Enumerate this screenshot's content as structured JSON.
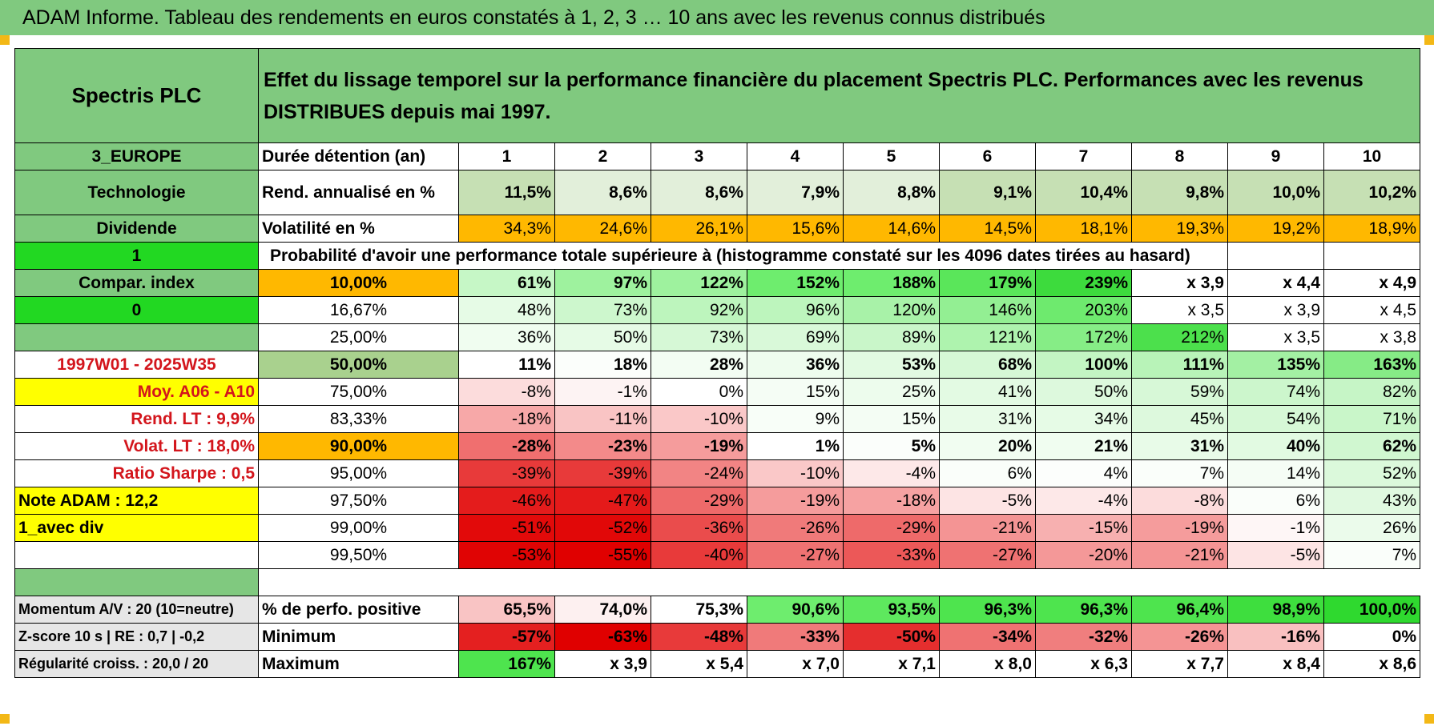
{
  "title": "ADAM Informe. Tableau des rendements en euros constatés à 1, 2, 3 … 10 ans avec les revenus connus distribués",
  "header": {
    "name": "Spectris PLC",
    "description": "Effet du lissage temporel sur la performance financière du placement Spectris PLC. Performances avec les revenus DISTRIBUES depuis mai 1997."
  },
  "years_row": {
    "side": "3_EUROPE",
    "label": "Durée détention (an)",
    "values": [
      "1",
      "2",
      "3",
      "4",
      "5",
      "6",
      "7",
      "8",
      "9",
      "10"
    ]
  },
  "rend_row": {
    "side": "Technologie",
    "label": "Rend. annualisé en %",
    "values": [
      "11,5%",
      "8,6%",
      "8,6%",
      "7,9%",
      "8,8%",
      "9,1%",
      "10,4%",
      "9,8%",
      "10,0%",
      "10,2%"
    ],
    "colors": [
      "#c6e0b4",
      "#e2efda",
      "#e2efda",
      "#e2efda",
      "#e2efda",
      "#c6e0b4",
      "#c6e0b4",
      "#c6e0b4",
      "#c6e0b4",
      "#c6e0b4"
    ]
  },
  "vol_row": {
    "side": "Dividende",
    "label": "Volatilité en %",
    "values": [
      "34,3%",
      "24,6%",
      "26,1%",
      "15,6%",
      "14,6%",
      "14,5%",
      "18,1%",
      "19,3%",
      "19,2%",
      "18,9%"
    ],
    "color": "#ffb800"
  },
  "prob_row": {
    "side": "1",
    "label": "Probabilité d'avoir une performance totale supérieure à (histogramme constaté sur les 4096 dates tirées au hasard)"
  },
  "prob_rows": [
    {
      "side": "Compar. index",
      "side_style": "hdr-green b",
      "pct": "10,00%",
      "pct_bg": "#ffb800",
      "bold": true,
      "values": [
        "61%",
        "97%",
        "122%",
        "152%",
        "188%",
        "179%",
        "239%",
        "x 3,9",
        "x 4,4",
        "x 4,9"
      ],
      "colors": [
        "#c6f7c6",
        "#9ef29e",
        "#9ef29e",
        "#6eed6e",
        "#6eed6e",
        "#5ae65a",
        "#3ddb3d",
        "#ffffff",
        "#ffffff",
        "#ffffff"
      ]
    },
    {
      "side": "0",
      "side_style": "lime b",
      "pct": "16,67%",
      "pct_bg": "#ffffff",
      "bold": false,
      "values": [
        "48%",
        "73%",
        "92%",
        "96%",
        "120%",
        "146%",
        "203%",
        "x 3,5",
        "x 3,9",
        "x 4,5"
      ],
      "colors": [
        "#e6fbe6",
        "#cdf7cd",
        "#bdf5bd",
        "#bdf5bd",
        "#a8f2a8",
        "#93ef93",
        "#6eea6e",
        "#ffffff",
        "#ffffff",
        "#ffffff"
      ]
    },
    {
      "side": "",
      "side_style": "hdr-green",
      "pct": "25,00%",
      "pct_bg": "#ffffff",
      "bold": false,
      "values": [
        "36%",
        "50%",
        "73%",
        "69%",
        "89%",
        "121%",
        "172%",
        "212%",
        "x 3,5",
        "x 3,8"
      ],
      "colors": [
        "#f0fdf0",
        "#e6fbe6",
        "#d6f8d6",
        "#d9f9d9",
        "#c9f6c9",
        "#aef3ae",
        "#86ed86",
        "#4ce04c",
        "#ffffff",
        "#ffffff"
      ]
    },
    {
      "side": "1997W01 - 2025W35",
      "side_style": "red b",
      "pct": "50,00%",
      "pct_bg": "#a9d18e",
      "bold": true,
      "big": true,
      "values": [
        "11%",
        "18%",
        "28%",
        "36%",
        "53%",
        "68%",
        "100%",
        "111%",
        "135%",
        "163%"
      ],
      "colors": [
        "#ffffff",
        "#fbfefb",
        "#f3fdf3",
        "#eefcee",
        "#e2fae2",
        "#d6f8d6",
        "#c3f5c3",
        "#b8f3b8",
        "#a3f0a3",
        "#86eb86"
      ]
    },
    {
      "side": "Moy. A06 - A10",
      "side_style": "yellow red b r",
      "pct": "75,00%",
      "pct_bg": "#ffffff",
      "bold": false,
      "values": [
        "-8%",
        "-1%",
        "0%",
        "15%",
        "25%",
        "41%",
        "50%",
        "59%",
        "74%",
        "82%"
      ],
      "colors": [
        "#fcdcdc",
        "#fdf3f3",
        "#ffffff",
        "#f5fdf5",
        "#edfced",
        "#e3fae3",
        "#ddf9dd",
        "#d7f8d7",
        "#ccf6cc",
        "#c6f5c6"
      ]
    },
    {
      "side": "Rend. LT :   9,9%",
      "side_style": "red b r",
      "pct": "83,33%",
      "pct_bg": "#ffffff",
      "bold": false,
      "values": [
        "-18%",
        "-11%",
        "-10%",
        "9%",
        "15%",
        "31%",
        "34%",
        "45%",
        "54%",
        "71%"
      ],
      "colors": [
        "#f7a8a8",
        "#f9c4c4",
        "#fac8c8",
        "#f8fef8",
        "#f4fdf4",
        "#e8fbe8",
        "#e6fbe6",
        "#ddf9dd",
        "#d6f8d6",
        "#c9f6c9"
      ]
    },
    {
      "side": "Volat. LT :   18,0%",
      "side_style": "red b r",
      "pct": "90,00%",
      "pct_bg": "#ffb800",
      "bold": true,
      "values": [
        "-28%",
        "-23%",
        "-19%",
        "1%",
        "5%",
        "20%",
        "21%",
        "31%",
        "40%",
        "62%"
      ],
      "colors": [
        "#f06f6f",
        "#f38a8a",
        "#f59c9c",
        "#ffffff",
        "#fbfefb",
        "#f1fdf1",
        "#f0fdf0",
        "#e8fbe8",
        "#e2fae2",
        "#d0f7d0"
      ]
    },
    {
      "side": "Ratio Sharpe :    0,5",
      "side_style": "red b r",
      "pct": "95,00%",
      "pct_bg": "#ffffff",
      "bold": false,
      "values": [
        "-39%",
        "-39%",
        "-24%",
        "-10%",
        "-4%",
        "6%",
        "4%",
        "7%",
        "14%",
        "52%"
      ],
      "colors": [
        "#e83a3a",
        "#e83a3a",
        "#f28484",
        "#fac8c8",
        "#fde8e8",
        "#fafefa",
        "#fcfefc",
        "#fafefa",
        "#f5fdf5",
        "#dbf9db"
      ]
    },
    {
      "side": "Note ADAM : 12,2",
      "side_style": "yellow b l",
      "pct": "97,50%",
      "pct_bg": "#ffffff",
      "bold": false,
      "values": [
        "-46%",
        "-47%",
        "-29%",
        "-19%",
        "-18%",
        "-5%",
        "-4%",
        "-8%",
        "6%",
        "43%"
      ],
      "colors": [
        "#e41c1c",
        "#e41a1a",
        "#ee6a6a",
        "#f59c9c",
        "#f6a2a2",
        "#fde4e4",
        "#fde8e8",
        "#fcdcdc",
        "#fafefa",
        "#e0f9e0"
      ]
    },
    {
      "side": "1_avec div",
      "side_style": "yellow b l",
      "pct": "99,00%",
      "pct_bg": "#ffffff",
      "bold": false,
      "values": [
        "-51%",
        "-52%",
        "-36%",
        "-26%",
        "-29%",
        "-21%",
        "-15%",
        "-19%",
        "-1%",
        "26%"
      ],
      "colors": [
        "#e20a0a",
        "#e10808",
        "#ea4c4c",
        "#f07a7a",
        "#ee6a6a",
        "#f49494",
        "#f7b0b0",
        "#f59c9c",
        "#fef6f6",
        "#ebfbeb"
      ]
    },
    {
      "side": "",
      "side_style": "",
      "pct": "99,50%",
      "pct_bg": "#ffffff",
      "bold": false,
      "values": [
        "-53%",
        "-55%",
        "-40%",
        "-27%",
        "-33%",
        "-27%",
        "-20%",
        "-21%",
        "-5%",
        "7%"
      ],
      "colors": [
        "#e00404",
        "#e00000",
        "#e83a3a",
        "#ef7272",
        "#ec5858",
        "#ef7272",
        "#f49898",
        "#f49494",
        "#fde4e4",
        "#fafefa"
      ]
    }
  ],
  "bottom_rows": [
    {
      "side": "Momentum A/V : 20 (10=neutre)",
      "label": "% de perfo. positive",
      "values": [
        "65,5%",
        "74,0%",
        "75,3%",
        "90,6%",
        "93,5%",
        "96,3%",
        "96,3%",
        "96,4%",
        "98,9%",
        "100,0%"
      ],
      "colors": [
        "#f9c4c4",
        "#fdf0f0",
        "#ffffff",
        "#6eed6e",
        "#5ee85e",
        "#4ee44e",
        "#4ee44e",
        "#4ee44e",
        "#3ede3e",
        "#2fd92f"
      ]
    },
    {
      "side": "Z-score 10 s | RE : 0,7 | -0,2",
      "label": "Minimum",
      "values": [
        "-57%",
        "-63%",
        "-48%",
        "-33%",
        "-50%",
        "-34%",
        "-32%",
        "-26%",
        "-16%",
        "0%"
      ],
      "colors": [
        "#e42020",
        "#e00000",
        "#e83a3a",
        "#f07a7a",
        "#e52e2e",
        "#ef7272",
        "#f07e7e",
        "#f49494",
        "#f9c0c0",
        "#ffffff"
      ]
    },
    {
      "side": "Régularité croiss. : 20,0 / 20",
      "label": "Maximum",
      "values": [
        "167%",
        "x 3,9",
        "x 5,4",
        "x 7,0",
        "x 7,1",
        "x 8,0",
        "x 6,3",
        "x 7,7",
        "x 8,4",
        "x 8,6"
      ],
      "colors": [
        "#4ee44e",
        "#ffffff",
        "#ffffff",
        "#ffffff",
        "#ffffff",
        "#ffffff",
        "#ffffff",
        "#ffffff",
        "#ffffff",
        "#ffffff"
      ]
    }
  ]
}
